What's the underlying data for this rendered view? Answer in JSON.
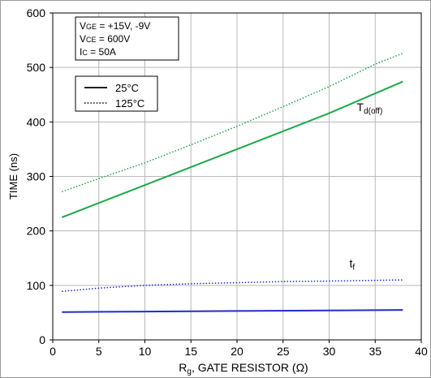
{
  "chart_data": {
    "type": "line",
    "xlabel_main": "R",
    "xlabel_sub": "g",
    "xlabel_rest": ", GATE RESISTOR (Ω)",
    "ylabel": "TIME (ns)",
    "xlim": [
      0,
      40
    ],
    "ylim": [
      0,
      600
    ],
    "xticks": [
      0,
      5,
      10,
      15,
      20,
      25,
      30,
      35,
      40
    ],
    "yticks": [
      0,
      100,
      200,
      300,
      400,
      500,
      600
    ],
    "grid": true,
    "conditions": [
      {
        "main": "V",
        "sub": "GE",
        "rest": " = +15V, -9V"
      },
      {
        "main": "V",
        "sub": "CE",
        "rest": " = 600V"
      },
      {
        "main": "I",
        "sub": "C",
        "rest": " = 50A"
      }
    ],
    "legend": [
      {
        "label": "25°C",
        "style": "solid"
      },
      {
        "label": "125°C",
        "style": "dotted"
      }
    ],
    "curve_labels": [
      {
        "main": "T",
        "sub": "d(off)",
        "color": "#1aa84a",
        "at": [
          33,
          420
        ]
      },
      {
        "main": "t",
        "sub": "f",
        "color": "#1f2fc8",
        "at": [
          32.2,
          133
        ]
      }
    ],
    "series": [
      {
        "label": "T d(off), 25°C",
        "color": "#1aa84a",
        "style": "solid",
        "x": [
          1,
          10,
          20,
          30,
          38
        ],
        "y": [
          225,
          284,
          350,
          416,
          474
        ]
      },
      {
        "label": "T d(off), 125°C",
        "color": "#1aa84a",
        "style": "dotted",
        "x": [
          1,
          5,
          10,
          15,
          20,
          25,
          30,
          35,
          38
        ],
        "y": [
          272,
          296,
          325,
          358,
          392,
          428,
          465,
          506,
          526
        ]
      },
      {
        "label": "tf, 25°C",
        "color": "#1f2fc8",
        "style": "solid",
        "x": [
          1,
          10,
          20,
          30,
          38
        ],
        "y": [
          51,
          52,
          53,
          54,
          55
        ]
      },
      {
        "label": "tf, 125°C",
        "color": "#1f2fc8",
        "style": "dotted",
        "x": [
          1,
          5,
          10,
          15,
          20,
          25,
          30,
          38
        ],
        "y": [
          89,
          95,
          100,
          103,
          105,
          107,
          108,
          110
        ]
      }
    ]
  }
}
